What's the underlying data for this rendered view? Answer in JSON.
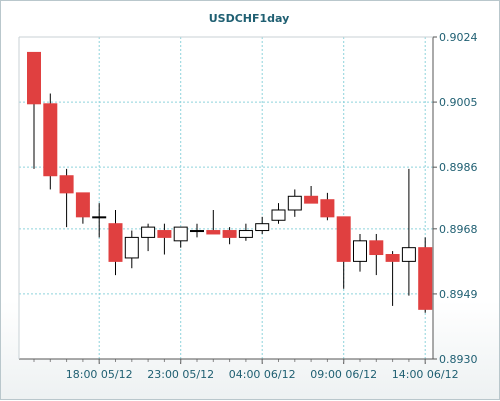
{
  "chart_data": {
    "type": "candlestick",
    "title": "USDCHF1day",
    "x_tick_labels": [
      "18:00 05/12",
      "23:00 05/12",
      "04:00 06/12",
      "09:00 06/12",
      "14:00 06/12"
    ],
    "y_tick_labels": [
      "0.9024",
      "0.9005",
      "0.8986",
      "0.8968",
      "0.8949",
      "0.8930"
    ],
    "ylim": [
      0.893,
      0.9024
    ],
    "grid": true,
    "colors": {
      "up": "#ffffff",
      "down": "#e04040",
      "wick": "#000000",
      "grid": "#8fd3dc",
      "axis_text": "#1f5f72"
    },
    "candles": [
      {
        "open": 0.90195,
        "high": 0.90195,
        "low": 0.89855,
        "close": 0.90045
      },
      {
        "open": 0.90045,
        "high": 0.90075,
        "low": 0.89795,
        "close": 0.89835
      },
      {
        "open": 0.89835,
        "high": 0.89855,
        "low": 0.89685,
        "close": 0.89785
      },
      {
        "open": 0.89785,
        "high": 0.89785,
        "low": 0.89695,
        "close": 0.89715
      },
      {
        "open": 0.89715,
        "high": 0.89755,
        "low": 0.89655,
        "close": 0.89715
      },
      {
        "open": 0.89695,
        "high": 0.89735,
        "low": 0.89545,
        "close": 0.89585
      },
      {
        "open": 0.89595,
        "high": 0.89675,
        "low": 0.89565,
        "close": 0.89655
      },
      {
        "open": 0.89655,
        "high": 0.89695,
        "low": 0.89615,
        "close": 0.89685
      },
      {
        "open": 0.89675,
        "high": 0.89695,
        "low": 0.89605,
        "close": 0.89655
      },
      {
        "open": 0.89645,
        "high": 0.89685,
        "low": 0.89625,
        "close": 0.89685
      },
      {
        "open": 0.89675,
        "high": 0.89695,
        "low": 0.89655,
        "close": 0.89675
      },
      {
        "open": 0.89675,
        "high": 0.89735,
        "low": 0.89665,
        "close": 0.89665
      },
      {
        "open": 0.89675,
        "high": 0.89685,
        "low": 0.89635,
        "close": 0.89655
      },
      {
        "open": 0.89655,
        "high": 0.89695,
        "low": 0.89645,
        "close": 0.89675
      },
      {
        "open": 0.89675,
        "high": 0.89715,
        "low": 0.89665,
        "close": 0.89695
      },
      {
        "open": 0.89705,
        "high": 0.89755,
        "low": 0.89695,
        "close": 0.89735
      },
      {
        "open": 0.89735,
        "high": 0.89795,
        "low": 0.89715,
        "close": 0.89775
      },
      {
        "open": 0.89775,
        "high": 0.89805,
        "low": 0.89755,
        "close": 0.89755
      },
      {
        "open": 0.89765,
        "high": 0.89785,
        "low": 0.89705,
        "close": 0.89715
      },
      {
        "open": 0.89715,
        "high": 0.89715,
        "low": 0.89505,
        "close": 0.89585
      },
      {
        "open": 0.89585,
        "high": 0.89665,
        "low": 0.89555,
        "close": 0.89645
      },
      {
        "open": 0.89645,
        "high": 0.89665,
        "low": 0.89545,
        "close": 0.89605
      },
      {
        "open": 0.89605,
        "high": 0.89615,
        "low": 0.89455,
        "close": 0.89585
      },
      {
        "open": 0.89585,
        "high": 0.89855,
        "low": 0.89485,
        "close": 0.89625
      },
      {
        "open": 0.89625,
        "high": 0.89655,
        "low": 0.89435,
        "close": 0.89445
      }
    ]
  }
}
